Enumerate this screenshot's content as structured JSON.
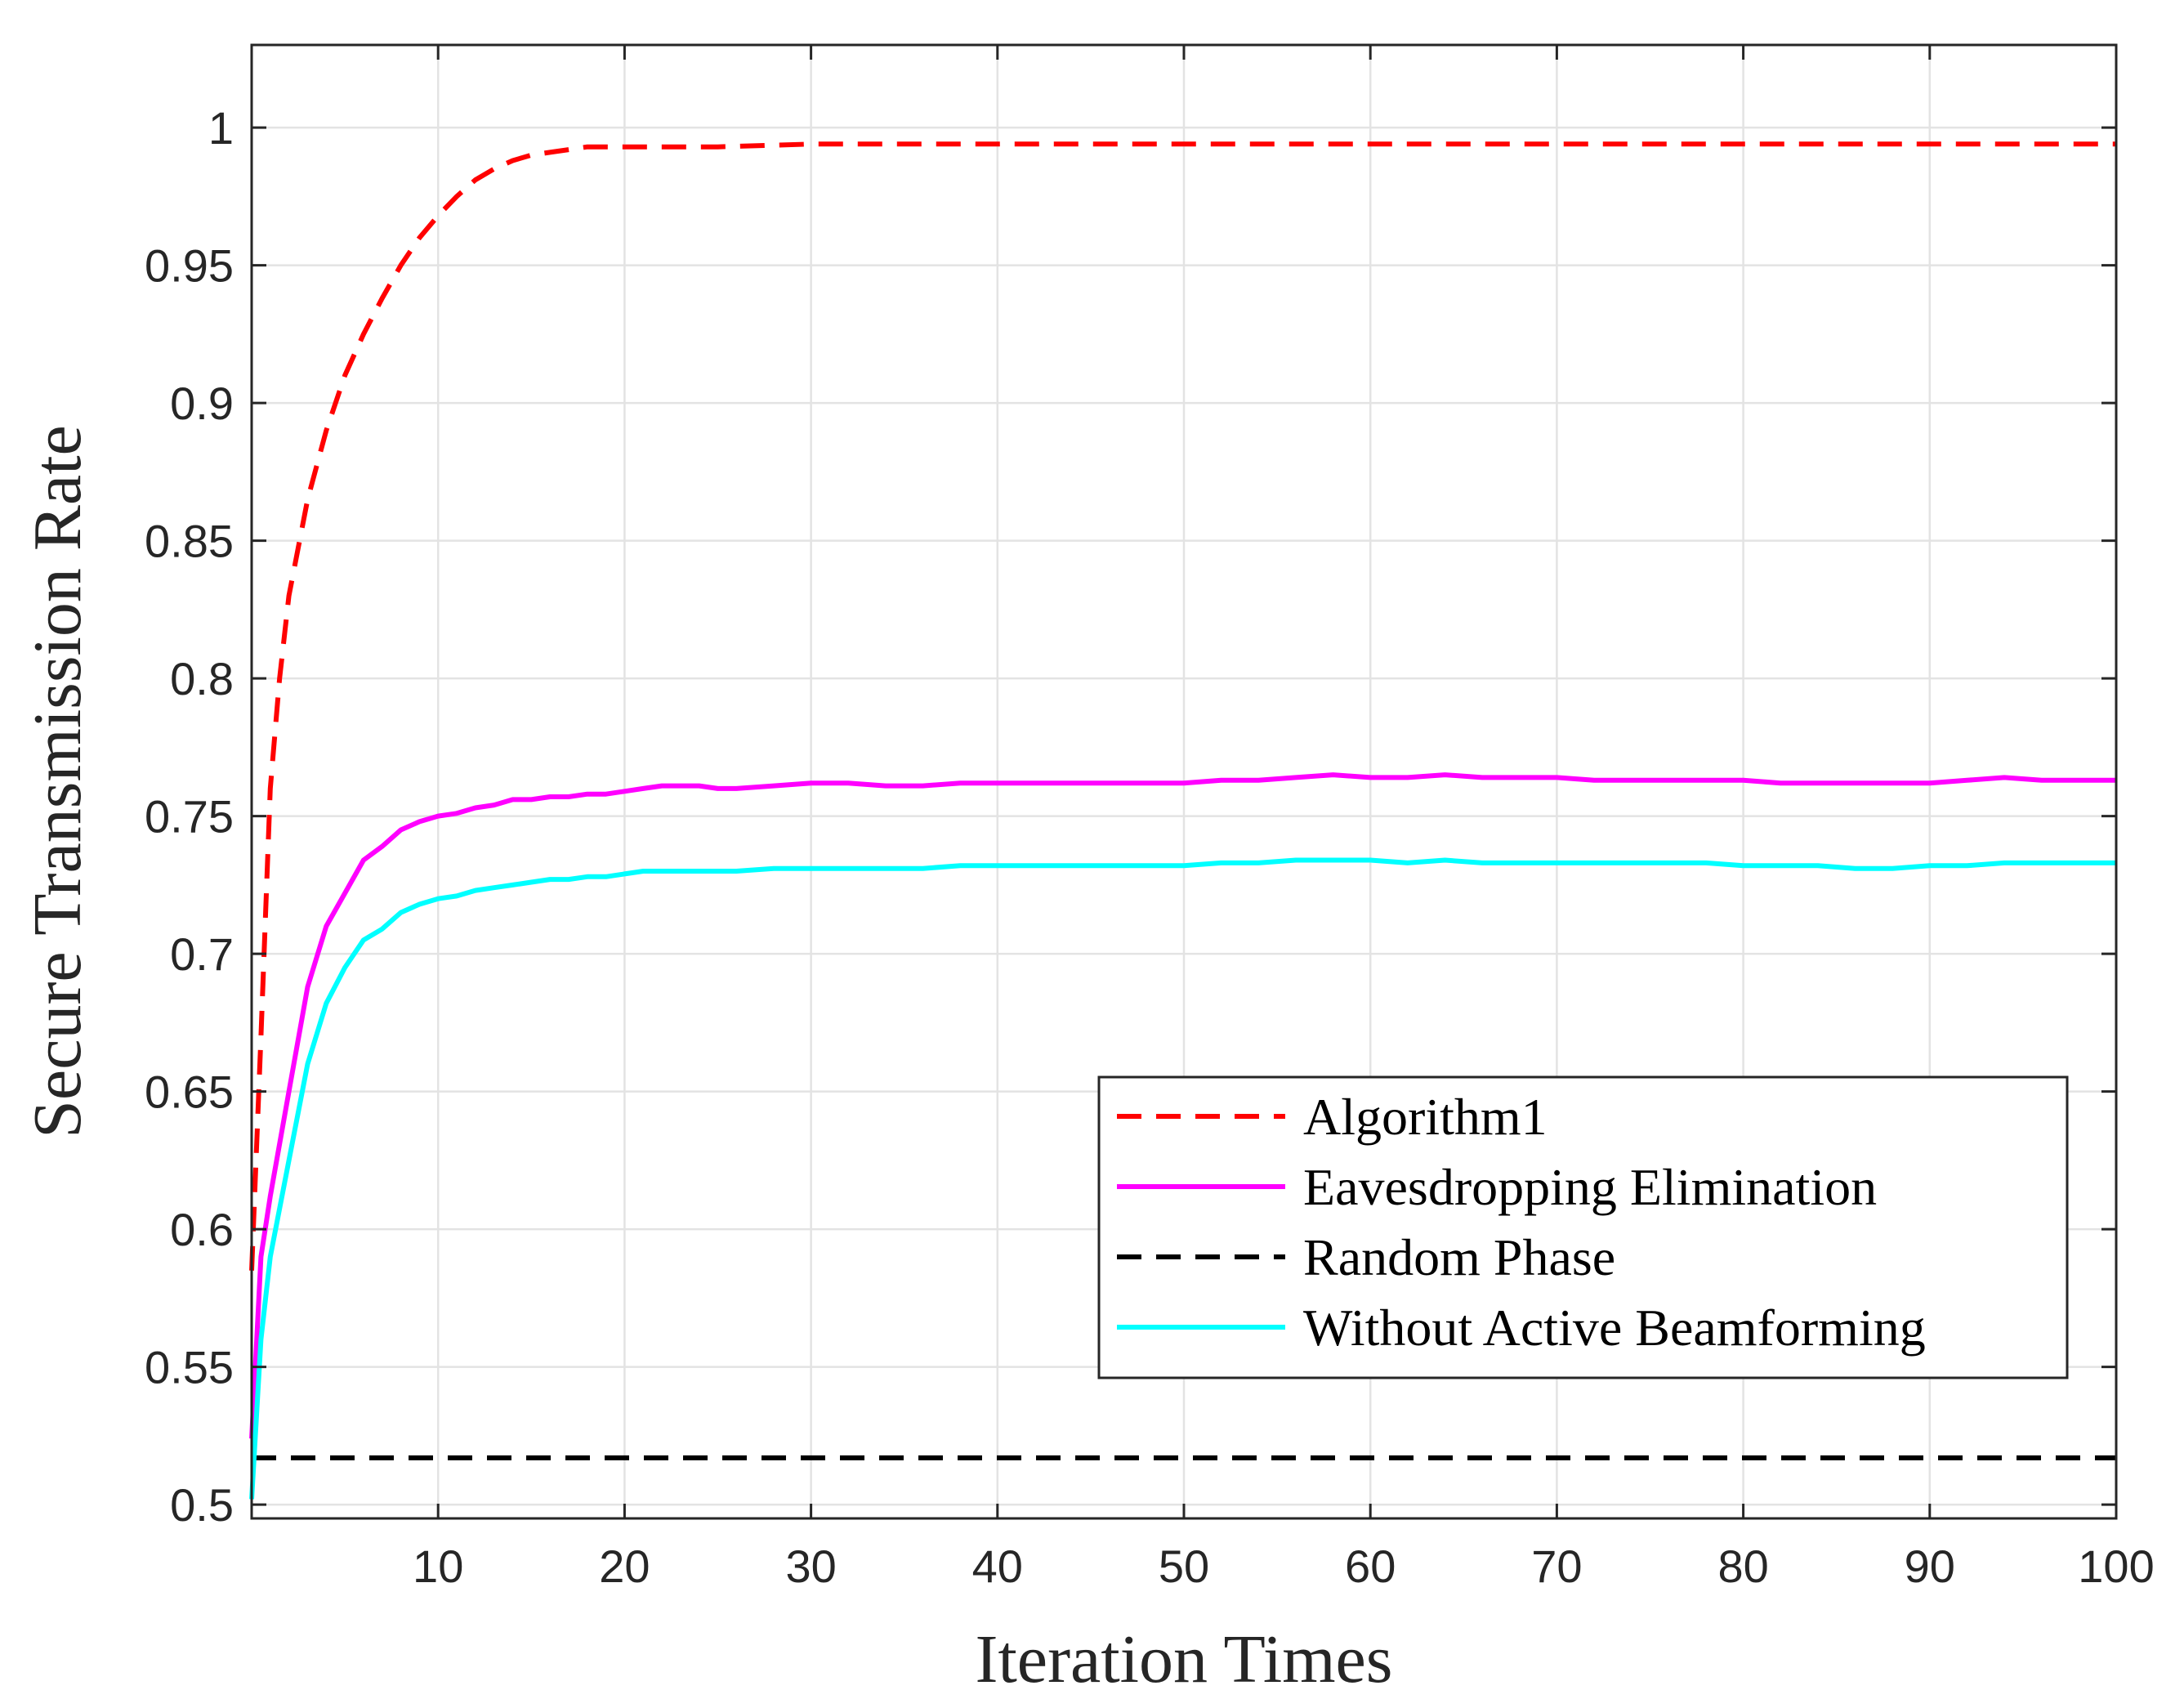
{
  "chart_data": {
    "type": "line",
    "title": "",
    "xlabel": "Iteration Times",
    "ylabel": "Secure Transmission Rate",
    "xlim": [
      0,
      100
    ],
    "ylim": [
      0.495,
      1.03
    ],
    "xticks": [
      10,
      20,
      30,
      40,
      50,
      60,
      70,
      80,
      90,
      100
    ],
    "xtick_labels": [
      "10",
      "20",
      "30",
      "40",
      "50",
      "60",
      "70",
      "80",
      "90",
      "100"
    ],
    "yticks": [
      0.5,
      0.55,
      0.6,
      0.65,
      0.7,
      0.75,
      0.8,
      0.85,
      0.9,
      0.95,
      1
    ],
    "ytick_labels": [
      "0.5",
      "0.55",
      "0.6",
      "0.65",
      "0.7",
      "0.75",
      "0.8",
      "0.85",
      "0.9",
      "0.95",
      "1"
    ],
    "grid": true,
    "legend_position": "lower-right",
    "series": [
      {
        "name": "Algorithm1",
        "color": "#ff0000",
        "style": "dashed",
        "x": [
          0,
          0.5,
          1,
          1.5,
          2,
          3,
          4,
          5,
          6,
          7,
          8,
          9,
          10,
          11,
          12,
          13,
          14,
          15,
          16,
          17,
          18,
          20,
          25,
          30,
          40,
          50,
          60,
          70,
          80,
          90,
          100
        ],
        "y": [
          0.585,
          0.67,
          0.76,
          0.8,
          0.83,
          0.865,
          0.89,
          0.91,
          0.925,
          0.938,
          0.95,
          0.96,
          0.968,
          0.975,
          0.981,
          0.985,
          0.988,
          0.99,
          0.991,
          0.992,
          0.993,
          0.993,
          0.993,
          0.994,
          0.994,
          0.994,
          0.994,
          0.994,
          0.994,
          0.994,
          0.994
        ]
      },
      {
        "name": "Eavesdropping Elimination",
        "color": "#ff00ff",
        "style": "solid",
        "x": [
          0,
          0.5,
          1,
          2,
          3,
          4,
          5,
          6,
          7,
          8,
          9,
          10,
          11,
          12,
          13,
          14,
          15,
          16,
          17,
          18,
          19,
          20,
          21,
          22,
          23,
          24,
          25,
          26,
          28,
          30,
          32,
          34,
          36,
          38,
          40,
          42,
          44,
          46,
          48,
          50,
          52,
          54,
          56,
          58,
          60,
          62,
          64,
          66,
          68,
          70,
          72,
          74,
          76,
          78,
          80,
          82,
          84,
          86,
          88,
          90,
          92,
          94,
          96,
          98,
          100
        ],
        "y": [
          0.524,
          0.59,
          0.612,
          0.65,
          0.688,
          0.71,
          0.722,
          0.734,
          0.739,
          0.745,
          0.748,
          0.75,
          0.751,
          0.753,
          0.754,
          0.756,
          0.756,
          0.757,
          0.757,
          0.758,
          0.758,
          0.759,
          0.76,
          0.761,
          0.761,
          0.761,
          0.76,
          0.76,
          0.761,
          0.762,
          0.762,
          0.761,
          0.761,
          0.762,
          0.762,
          0.762,
          0.762,
          0.762,
          0.762,
          0.762,
          0.763,
          0.763,
          0.764,
          0.765,
          0.764,
          0.764,
          0.765,
          0.764,
          0.764,
          0.764,
          0.763,
          0.763,
          0.763,
          0.763,
          0.763,
          0.762,
          0.762,
          0.762,
          0.762,
          0.762,
          0.763,
          0.764,
          0.763,
          0.763,
          0.763
        ]
      },
      {
        "name": "Random Phase",
        "color": "#000000",
        "style": "dashed",
        "x": [
          0,
          100
        ],
        "y": [
          0.517,
          0.517
        ]
      },
      {
        "name": "Without Active Beamforming",
        "color": "#00ffff",
        "style": "solid",
        "x": [
          0,
          0.5,
          1,
          2,
          3,
          4,
          5,
          6,
          7,
          8,
          9,
          10,
          11,
          12,
          13,
          14,
          15,
          16,
          17,
          18,
          19,
          20,
          21,
          22,
          23,
          24,
          25,
          26,
          28,
          30,
          32,
          34,
          36,
          38,
          40,
          42,
          44,
          46,
          48,
          50,
          52,
          54,
          56,
          58,
          60,
          62,
          64,
          66,
          68,
          70,
          72,
          74,
          76,
          78,
          80,
          82,
          84,
          86,
          88,
          90,
          92,
          94,
          96,
          98,
          100
        ],
        "y": [
          0.502,
          0.56,
          0.59,
          0.625,
          0.66,
          0.682,
          0.695,
          0.705,
          0.709,
          0.715,
          0.718,
          0.72,
          0.721,
          0.723,
          0.724,
          0.725,
          0.726,
          0.727,
          0.727,
          0.728,
          0.728,
          0.729,
          0.73,
          0.73,
          0.73,
          0.73,
          0.73,
          0.73,
          0.731,
          0.731,
          0.731,
          0.731,
          0.731,
          0.732,
          0.732,
          0.732,
          0.732,
          0.732,
          0.732,
          0.732,
          0.733,
          0.733,
          0.734,
          0.734,
          0.734,
          0.733,
          0.734,
          0.733,
          0.733,
          0.733,
          0.733,
          0.733,
          0.733,
          0.733,
          0.732,
          0.732,
          0.732,
          0.731,
          0.731,
          0.732,
          0.732,
          0.733,
          0.733,
          0.733,
          0.733
        ]
      }
    ]
  }
}
